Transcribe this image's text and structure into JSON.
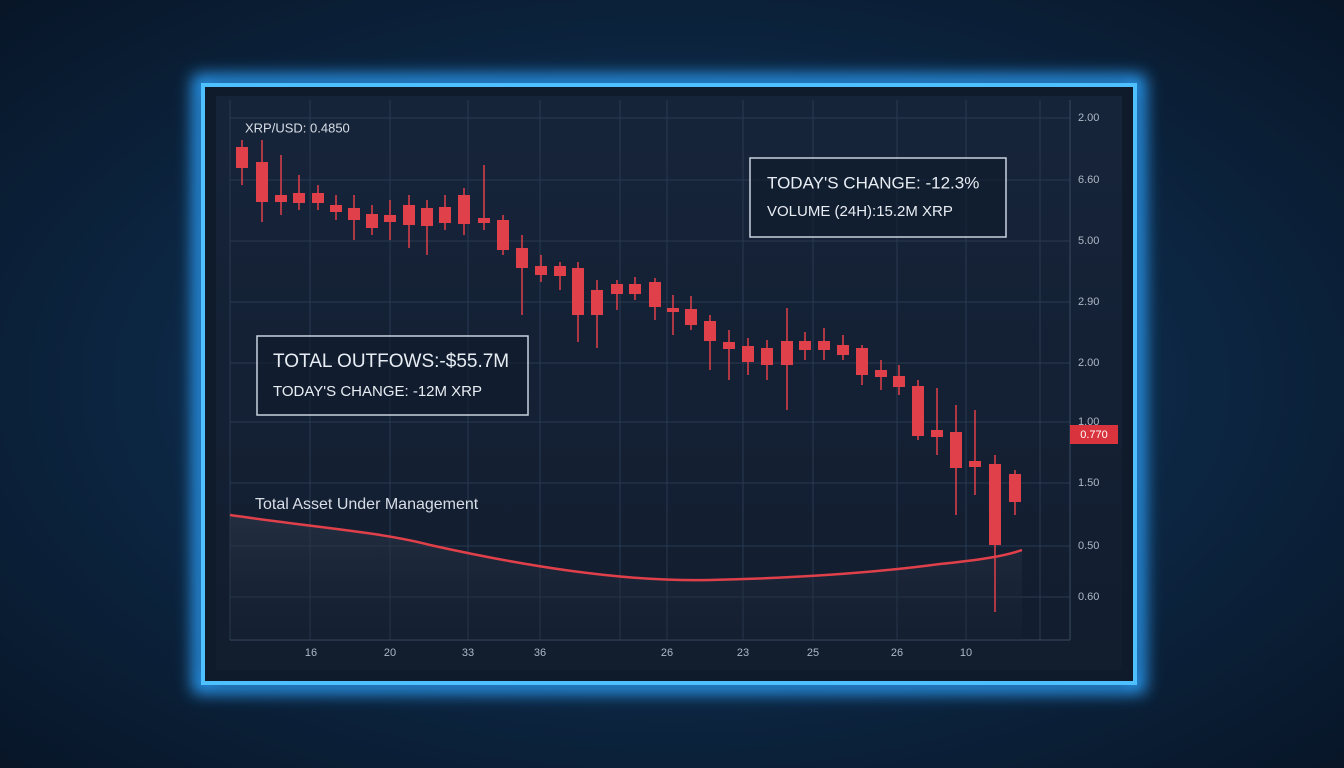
{
  "price_label": "XRP/USD: 0.4850",
  "stats_box": {
    "change": "TODAY'S CHANGE: -12.3%",
    "volume": "VOLUME (24H):15.2M XRP"
  },
  "outflows_box": {
    "outflows": "TOTAL OUTFOWS:-$55.7M",
    "change": "TODAY'S CHANGE: -12M XRP"
  },
  "aum_label": "Total Asset Under Management",
  "y_axis_labels": [
    "2.00",
    "6.60",
    "5.00",
    "2.90",
    "2.00",
    "1.00",
    "1.50",
    "0.50",
    "0.60"
  ],
  "price_tag": "0.770",
  "x_axis_labels": [
    "16",
    "20",
    "33",
    "36",
    "26",
    "23",
    "25",
    "26",
    "10"
  ]
}
